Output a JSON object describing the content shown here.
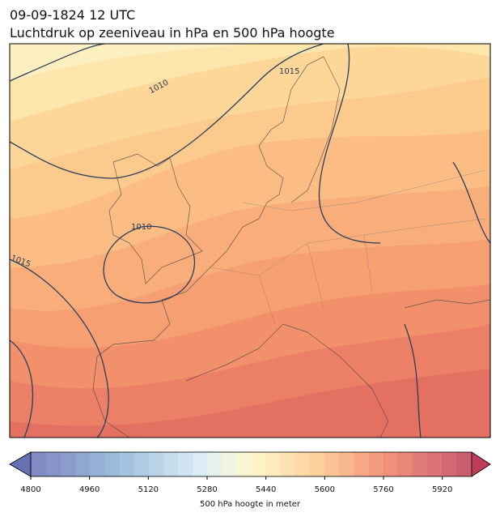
{
  "title": "09-09-1824 12 UTC",
  "subtitle": "Luchtdruk op zeeniveau in hPa en 500 hPa hoogte",
  "contour_labels": [
    "1010",
    "1015",
    "1010",
    "1015"
  ],
  "colorbar": {
    "label": "500 hPa hoogte in meter",
    "lim": [
      4800,
      6000
    ],
    "ticks": [
      4800,
      4960,
      5120,
      5280,
      5440,
      5600,
      5760,
      5920
    ]
  }
}
